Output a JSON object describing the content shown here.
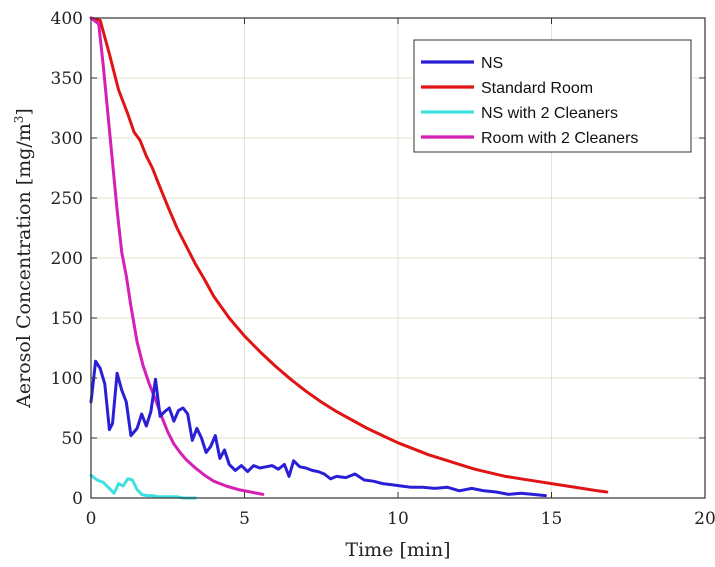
{
  "chart_data": {
    "type": "line",
    "title": "",
    "xlabel": "Time [min]",
    "ylabel": "Aerosol Concentration [mg/m",
    "ylabel_sup": "3",
    "ylabel_close": "]",
    "xlim": [
      0,
      20
    ],
    "ylim": [
      0,
      400
    ],
    "xticks": [
      0,
      5,
      10,
      15,
      20
    ],
    "yticks": [
      0,
      50,
      100,
      150,
      200,
      250,
      300,
      350,
      400
    ],
    "grid": true,
    "legend_position": "top-right",
    "series": [
      {
        "name": "NS",
        "color": "#2a1fd6",
        "x": [
          0,
          0.15,
          0.3,
          0.45,
          0.6,
          0.7,
          0.85,
          1.0,
          1.15,
          1.3,
          1.5,
          1.65,
          1.8,
          1.95,
          2.1,
          2.25,
          2.4,
          2.55,
          2.7,
          2.85,
          3.0,
          3.15,
          3.3,
          3.45,
          3.6,
          3.75,
          3.9,
          4.05,
          4.2,
          4.35,
          4.5,
          4.7,
          4.9,
          5.1,
          5.3,
          5.5,
          5.7,
          5.9,
          6.1,
          6.3,
          6.45,
          6.6,
          6.8,
          7.0,
          7.2,
          7.4,
          7.6,
          7.8,
          8.0,
          8.3,
          8.6,
          8.9,
          9.2,
          9.5,
          9.8,
          10.1,
          10.4,
          10.8,
          11.2,
          11.6,
          12.0,
          12.4,
          12.8,
          13.2,
          13.6,
          14.0,
          14.4,
          14.8
        ],
        "y": [
          80,
          114,
          108,
          95,
          57,
          62,
          104,
          90,
          80,
          52,
          58,
          70,
          60,
          72,
          99,
          68,
          72,
          75,
          64,
          73,
          75,
          70,
          48,
          58,
          50,
          38,
          43,
          52,
          33,
          40,
          28,
          23,
          27,
          22,
          27,
          25,
          26,
          27,
          24,
          28,
          18,
          31,
          26,
          25,
          23,
          22,
          20,
          16,
          18,
          17,
          20,
          15,
          14,
          12,
          11,
          10,
          9,
          9,
          8,
          9,
          6,
          8,
          6,
          5,
          3,
          4,
          3,
          2
        ]
      },
      {
        "name": "Standard Room",
        "color": "#e01414",
        "x": [
          0,
          0.3,
          0.6,
          0.9,
          1.2,
          1.4,
          1.6,
          1.8,
          2.0,
          2.2,
          2.5,
          2.8,
          3.1,
          3.4,
          3.7,
          4.0,
          4.5,
          5.0,
          5.5,
          6.0,
          6.5,
          7.0,
          7.5,
          8.0,
          8.5,
          9.0,
          9.5,
          10.0,
          10.5,
          11.0,
          11.5,
          12.0,
          12.5,
          13.0,
          13.5,
          14.0,
          14.5,
          15.0,
          15.5,
          16.0,
          16.5,
          16.8
        ],
        "y": [
          400,
          398,
          370,
          340,
          320,
          305,
          298,
          285,
          275,
          262,
          243,
          225,
          210,
          195,
          182,
          168,
          150,
          135,
          122,
          110,
          99,
          89,
          80,
          72,
          65,
          58,
          52,
          46,
          41,
          36,
          32,
          28,
          24,
          21,
          18,
          16,
          14,
          12,
          10,
          8,
          6,
          5
        ]
      },
      {
        "name": "NS with 2 Cleaners",
        "color": "#3fe0e0",
        "x": [
          0,
          0.2,
          0.4,
          0.6,
          0.75,
          0.9,
          1.05,
          1.2,
          1.35,
          1.5,
          1.65,
          1.8,
          2.0,
          2.2,
          2.4,
          2.6,
          2.8,
          3.0,
          3.2,
          3.4
        ],
        "y": [
          19,
          15,
          13,
          8,
          4,
          12,
          10,
          16,
          15,
          7,
          3,
          2,
          2,
          1,
          1,
          1,
          1,
          0,
          0,
          0
        ]
      },
      {
        "name": "Room with 2 Cleaners",
        "color": "#d61fb4",
        "x": [
          0,
          0.25,
          0.4,
          0.55,
          0.7,
          0.85,
          1.0,
          1.15,
          1.3,
          1.5,
          1.7,
          1.9,
          2.1,
          2.3,
          2.5,
          2.7,
          2.9,
          3.1,
          3.4,
          3.7,
          4.0,
          4.4,
          4.8,
          5.2,
          5.6
        ],
        "y": [
          400,
          395,
          360,
          320,
          280,
          240,
          205,
          185,
          160,
          130,
          110,
          95,
          82,
          68,
          55,
          45,
          38,
          32,
          25,
          19,
          14,
          10,
          7,
          5,
          3
        ]
      }
    ]
  }
}
